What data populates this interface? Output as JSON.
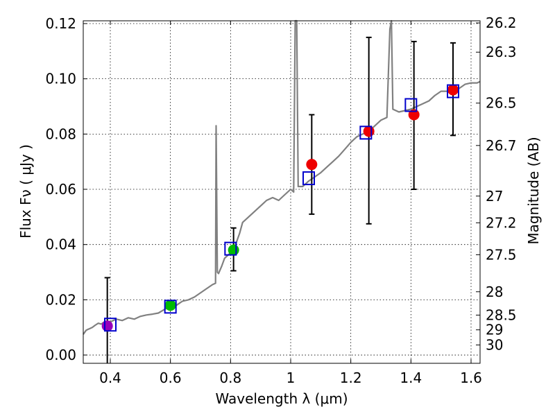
{
  "chart_data": {
    "type": "scatter",
    "xlabel": "Wavelength  λ (μm)",
    "ylabel": "Flux  Fν  ( μJy )",
    "ylabel_right": "Magnitude (AB)",
    "xlim": [
      0.31,
      1.63
    ],
    "ylim": [
      -0.003,
      0.121
    ],
    "x_ticks": [
      0.4,
      0.6,
      0.8,
      1.0,
      1.2,
      1.4,
      1.6
    ],
    "x_tick_labels": [
      "0.4",
      "0.6",
      "0.8",
      "1",
      "1.2",
      "1.4",
      "1.6"
    ],
    "y_ticks": [
      0.0,
      0.02,
      0.04,
      0.06,
      0.08,
      0.1,
      0.12
    ],
    "y_tick_labels": [
      "0.00",
      "0.02",
      "0.04",
      "0.06",
      "0.08",
      "0.10",
      "0.12"
    ],
    "right_ticks": [
      {
        "label": "26.2",
        "mag": 26.2
      },
      {
        "label": "26.3",
        "mag": 26.3
      },
      {
        "label": "26.5",
        "mag": 26.5
      },
      {
        "label": "26.7",
        "mag": 26.7
      },
      {
        "label": "27",
        "mag": 27.0
      },
      {
        "label": "27.2",
        "mag": 27.2
      },
      {
        "label": "27.5",
        "mag": 27.5
      },
      {
        "label": "28",
        "mag": 28.0
      },
      {
        "label": "28.5",
        "mag": 28.5
      },
      {
        "label": "29",
        "mag": 29.0
      },
      {
        "label": "30",
        "mag": 30.0
      }
    ],
    "grid": true,
    "colors": {
      "template": "#808080",
      "model_box": "#0000cc",
      "obs_red": "#ee0000",
      "obs_green": "#00bb00",
      "obs_purple": "#9900bb",
      "errorbar": "#000000",
      "frame": "#000000"
    },
    "template_spectrum": [
      [
        0.31,
        0.0075
      ],
      [
        0.32,
        0.009
      ],
      [
        0.33,
        0.0095
      ],
      [
        0.34,
        0.01
      ],
      [
        0.35,
        0.0108
      ],
      [
        0.36,
        0.0115
      ],
      [
        0.37,
        0.0112
      ],
      [
        0.38,
        0.012
      ],
      [
        0.39,
        0.0105
      ],
      [
        0.4,
        0.012
      ],
      [
        0.42,
        0.013
      ],
      [
        0.44,
        0.0125
      ],
      [
        0.46,
        0.0135
      ],
      [
        0.48,
        0.013
      ],
      [
        0.5,
        0.014
      ],
      [
        0.52,
        0.0145
      ],
      [
        0.54,
        0.0148
      ],
      [
        0.56,
        0.0152
      ],
      [
        0.58,
        0.0165
      ],
      [
        0.6,
        0.0175
      ],
      [
        0.62,
        0.018
      ],
      [
        0.64,
        0.0195
      ],
      [
        0.66,
        0.02
      ],
      [
        0.68,
        0.021
      ],
      [
        0.7,
        0.0225
      ],
      [
        0.72,
        0.024
      ],
      [
        0.74,
        0.0255
      ],
      [
        0.75,
        0.026
      ],
      [
        0.752,
        0.083
      ],
      [
        0.756,
        0.03
      ],
      [
        0.76,
        0.0295
      ],
      [
        0.77,
        0.032
      ],
      [
        0.78,
        0.035
      ],
      [
        0.79,
        0.036
      ],
      [
        0.8,
        0.037
      ],
      [
        0.81,
        0.038
      ],
      [
        0.82,
        0.041
      ],
      [
        0.83,
        0.044
      ],
      [
        0.84,
        0.048
      ],
      [
        0.86,
        0.05
      ],
      [
        0.88,
        0.052
      ],
      [
        0.9,
        0.054
      ],
      [
        0.92,
        0.056
      ],
      [
        0.94,
        0.057
      ],
      [
        0.96,
        0.056
      ],
      [
        0.98,
        0.058
      ],
      [
        1.0,
        0.06
      ],
      [
        1.01,
        0.059
      ],
      [
        1.015,
        0.121
      ],
      [
        1.02,
        0.121
      ],
      [
        1.025,
        0.061
      ],
      [
        1.04,
        0.061
      ],
      [
        1.06,
        0.063
      ],
      [
        1.08,
        0.0645
      ],
      [
        1.1,
        0.066
      ],
      [
        1.12,
        0.068
      ],
      [
        1.14,
        0.07
      ],
      [
        1.16,
        0.072
      ],
      [
        1.18,
        0.0745
      ],
      [
        1.2,
        0.077
      ],
      [
        1.22,
        0.079
      ],
      [
        1.24,
        0.08
      ],
      [
        1.26,
        0.081
      ],
      [
        1.28,
        0.083
      ],
      [
        1.3,
        0.085
      ],
      [
        1.32,
        0.086
      ],
      [
        1.33,
        0.118
      ],
      [
        1.335,
        0.121
      ],
      [
        1.34,
        0.089
      ],
      [
        1.36,
        0.088
      ],
      [
        1.38,
        0.0885
      ],
      [
        1.4,
        0.089
      ],
      [
        1.42,
        0.09
      ],
      [
        1.44,
        0.091
      ],
      [
        1.46,
        0.092
      ],
      [
        1.48,
        0.094
      ],
      [
        1.5,
        0.0955
      ],
      [
        1.52,
        0.0955
      ],
      [
        1.54,
        0.097
      ],
      [
        1.56,
        0.0965
      ],
      [
        1.58,
        0.098
      ],
      [
        1.6,
        0.0985
      ],
      [
        1.62,
        0.0985
      ],
      [
        1.63,
        0.099
      ]
    ],
    "model_points": [
      {
        "x": 0.4,
        "y": 0.011
      },
      {
        "x": 0.6,
        "y": 0.0175
      },
      {
        "x": 0.8,
        "y": 0.0385
      },
      {
        "x": 1.06,
        "y": 0.064
      },
      {
        "x": 1.25,
        "y": 0.0805
      },
      {
        "x": 1.4,
        "y": 0.0905
      },
      {
        "x": 1.54,
        "y": 0.0955
      }
    ],
    "observed_points": [
      {
        "x": 0.39,
        "y": 0.0105,
        "err_low": -0.004,
        "err_high": 0.028,
        "color": "purple"
      },
      {
        "x": 0.6,
        "y": 0.018,
        "err_low": 0.0175,
        "err_high": 0.0185,
        "color": "green"
      },
      {
        "x": 0.81,
        "y": 0.038,
        "err_low": 0.0305,
        "err_high": 0.046,
        "color": "green"
      },
      {
        "x": 1.07,
        "y": 0.069,
        "err_low": 0.051,
        "err_high": 0.087,
        "color": "red"
      },
      {
        "x": 1.26,
        "y": 0.081,
        "err_low": 0.0475,
        "err_high": 0.115,
        "color": "red"
      },
      {
        "x": 1.41,
        "y": 0.087,
        "err_low": 0.06,
        "err_high": 0.1135,
        "color": "red"
      },
      {
        "x": 1.54,
        "y": 0.096,
        "err_low": 0.0795,
        "err_high": 0.113,
        "color": "red"
      }
    ]
  }
}
